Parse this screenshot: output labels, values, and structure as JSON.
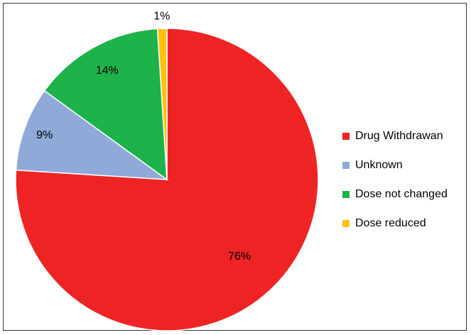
{
  "chart_data": {
    "type": "pie",
    "slices": [
      {
        "label": "Drug Withdrawan",
        "value": 76,
        "display": "76%",
        "color": "#ee2424"
      },
      {
        "label": "Unknown",
        "value": 9,
        "display": "9%",
        "color": "#8faad9"
      },
      {
        "label": "Dose not changed",
        "value": 14,
        "display": "14%",
        "color": "#1db24a"
      },
      {
        "label": "Dose reduced",
        "value": 1,
        "display": "1%",
        "color": "#fec10f"
      }
    ],
    "legend_position": "right",
    "start_angle": "12 o'clock",
    "direction": "clockwise"
  }
}
